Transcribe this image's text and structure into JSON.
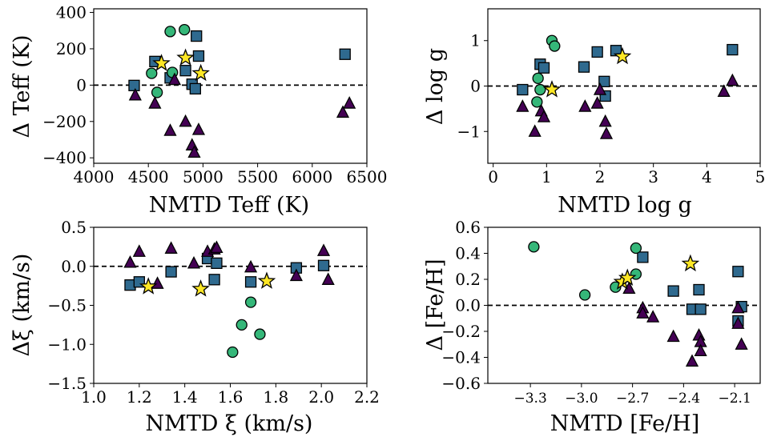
{
  "colors": {
    "square": "#2f6a8f",
    "circle": "#35b779",
    "triangle": "#440154",
    "star": "#fde725"
  },
  "chart_data": [
    {
      "id": "teff",
      "type": "scatter",
      "xlabel": "NMTD Teff (K)",
      "ylabel": "Δ Teff (K)",
      "xlim": [
        4000,
        6500
      ],
      "ylim": [
        -430,
        420
      ],
      "xticks": [
        4000,
        4500,
        5000,
        5500,
        6000,
        6500
      ],
      "yticks": [
        -400,
        -200,
        0,
        200,
        400
      ],
      "xtick_labels": [
        "4000",
        "4500",
        "5000",
        "5500",
        "6000",
        "6500"
      ],
      "ytick_labels": [
        "−400",
        "−200",
        "0",
        "200",
        "400"
      ],
      "zero_line": true,
      "series": [
        {
          "marker": "square",
          "points": [
            [
              4370,
              -2
            ],
            [
              4560,
              130
            ],
            [
              4700,
              40
            ],
            [
              4840,
              80
            ],
            [
              4900,
              5
            ],
            [
              4930,
              -20
            ],
            [
              4940,
              270
            ],
            [
              4960,
              160
            ],
            [
              6300,
              170
            ]
          ]
        },
        {
          "marker": "circle",
          "points": [
            [
              4530,
              65
            ],
            [
              4580,
              -40
            ],
            [
              4700,
              295
            ],
            [
              4830,
              305
            ],
            [
              4720,
              70
            ]
          ]
        },
        {
          "marker": "triangle",
          "points": [
            [
              4380,
              -55
            ],
            [
              4560,
              -100
            ],
            [
              4700,
              -250
            ],
            [
              4740,
              30
            ],
            [
              4840,
              -200
            ],
            [
              4900,
              -330
            ],
            [
              4920,
              -370
            ],
            [
              4960,
              -245
            ],
            [
              6280,
              -150
            ],
            [
              6340,
              -100
            ]
          ]
        },
        {
          "marker": "star",
          "points": [
            [
              4620,
              120
            ],
            [
              4840,
              150
            ],
            [
              4980,
              65
            ]
          ]
        }
      ]
    },
    {
      "id": "logg",
      "type": "scatter",
      "xlabel": "NMTD log g",
      "ylabel": "Δ log g",
      "xlim": [
        -0.1,
        5
      ],
      "ylim": [
        -1.7,
        1.7
      ],
      "xticks": [
        0,
        1,
        2,
        3,
        4,
        5
      ],
      "yticks": [
        -1,
        0,
        1
      ],
      "xtick_labels": [
        "0",
        "1",
        "2",
        "3",
        "4",
        "5"
      ],
      "ytick_labels": [
        "−1",
        "0",
        "1"
      ],
      "zero_line": true,
      "series": [
        {
          "marker": "square",
          "points": [
            [
              0.55,
              -0.08
            ],
            [
              0.88,
              0.48
            ],
            [
              0.95,
              0.4
            ],
            [
              1.7,
              0.42
            ],
            [
              1.95,
              0.75
            ],
            [
              2.08,
              0.1
            ],
            [
              2.1,
              -0.22
            ],
            [
              2.3,
              0.78
            ],
            [
              4.48,
              0.8
            ]
          ]
        },
        {
          "marker": "circle",
          "points": [
            [
              0.82,
              -0.35
            ],
            [
              0.84,
              0.17
            ],
            [
              0.88,
              -0.08
            ],
            [
              1.1,
              1.0
            ],
            [
              1.15,
              0.88
            ]
          ]
        },
        {
          "marker": "triangle",
          "points": [
            [
              0.55,
              -0.45
            ],
            [
              0.78,
              -1.0
            ],
            [
              0.9,
              -0.55
            ],
            [
              0.95,
              -0.68
            ],
            [
              1.72,
              -0.45
            ],
            [
              1.95,
              -0.38
            ],
            [
              2.0,
              -0.08
            ],
            [
              2.1,
              -0.78
            ],
            [
              2.12,
              -1.05
            ],
            [
              4.32,
              -0.12
            ],
            [
              4.48,
              0.12
            ]
          ]
        },
        {
          "marker": "star",
          "points": [
            [
              1.1,
              -0.08
            ],
            [
              2.42,
              0.65
            ]
          ]
        }
      ]
    },
    {
      "id": "xi",
      "type": "scatter",
      "xlabel": "NMTD ξ (km/s)",
      "ylabel": "Δξ (km/s)",
      "xlim": [
        1.0,
        2.2
      ],
      "ylim": [
        -1.5,
        0.5
      ],
      "xticks": [
        1.0,
        1.2,
        1.4,
        1.6,
        1.8,
        2.0,
        2.2
      ],
      "yticks": [
        -1.5,
        -1.0,
        -0.5,
        0.0,
        0.5
      ],
      "xtick_labels": [
        "1.0",
        "1.2",
        "1.4",
        "1.6",
        "1.8",
        "2.0",
        "2.2"
      ],
      "ytick_labels": [
        "−1.5",
        "−1.0",
        "−0.5",
        "0.0",
        "0.5"
      ],
      "zero_line": true,
      "series": [
        {
          "marker": "square",
          "points": [
            [
              1.16,
              -0.24
            ],
            [
              1.2,
              -0.2
            ],
            [
              1.34,
              -0.07
            ],
            [
              1.5,
              0.1
            ],
            [
              1.53,
              -0.17
            ],
            [
              1.54,
              0.04
            ],
            [
              1.69,
              -0.2
            ],
            [
              1.89,
              -0.02
            ],
            [
              2.01,
              0.01
            ]
          ]
        },
        {
          "marker": "circle",
          "points": [
            [
              1.61,
              -1.1
            ],
            [
              1.65,
              -0.75
            ],
            [
              1.69,
              -0.46
            ],
            [
              1.73,
              -0.87
            ]
          ]
        },
        {
          "marker": "triangle",
          "points": [
            [
              1.16,
              0.05
            ],
            [
              1.2,
              0.19
            ],
            [
              1.28,
              -0.22
            ],
            [
              1.34,
              0.23
            ],
            [
              1.44,
              0.04
            ],
            [
              1.5,
              0.19
            ],
            [
              1.53,
              0.22
            ],
            [
              1.54,
              0.24
            ],
            [
              1.69,
              -0.01
            ],
            [
              1.89,
              -0.12
            ],
            [
              2.01,
              0.2
            ],
            [
              2.03,
              -0.17
            ]
          ]
        },
        {
          "marker": "star",
          "points": [
            [
              1.24,
              -0.26
            ],
            [
              1.47,
              -0.29
            ],
            [
              1.76,
              -0.19
            ]
          ]
        }
      ]
    },
    {
      "id": "feh",
      "type": "scatter",
      "xlabel": "NMTD [Fe/H]",
      "ylabel": "Δ [Fe/H]",
      "xlim": [
        -3.55,
        -1.95
      ],
      "ylim": [
        -0.6,
        0.6
      ],
      "xticks": [
        -3.3,
        -3.0,
        -2.7,
        -2.4,
        -2.1
      ],
      "yticks": [
        -0.6,
        -0.4,
        -0.2,
        0.0,
        0.2,
        0.4,
        0.6
      ],
      "xtick_labels": [
        "−3.3",
        "−3.0",
        "−2.7",
        "−2.4",
        "−2.1"
      ],
      "ytick_labels": [
        "−0.6",
        "−0.4",
        "−0.2",
        "0.0",
        "0.2",
        "0.4",
        "0.6"
      ],
      "zero_line": true,
      "series": [
        {
          "marker": "square",
          "points": [
            [
              -2.64,
              0.37
            ],
            [
              -2.46,
              0.11
            ],
            [
              -2.35,
              -0.03
            ],
            [
              -2.31,
              0.12
            ],
            [
              -2.3,
              -0.03
            ],
            [
              -2.08,
              0.26
            ],
            [
              -2.08,
              -0.12
            ],
            [
              -2.06,
              -0.01
            ]
          ]
        },
        {
          "marker": "circle",
          "points": [
            [
              -3.28,
              0.45
            ],
            [
              -2.98,
              0.08
            ],
            [
              -2.8,
              0.14
            ],
            [
              -2.68,
              0.44
            ],
            [
              -2.68,
              0.24
            ]
          ]
        },
        {
          "marker": "triangle",
          "points": [
            [
              -2.72,
              0.13
            ],
            [
              -2.64,
              -0.02
            ],
            [
              -2.64,
              -0.06
            ],
            [
              -2.58,
              -0.09
            ],
            [
              -2.46,
              -0.24
            ],
            [
              -2.35,
              -0.43
            ],
            [
              -2.31,
              -0.23
            ],
            [
              -2.3,
              -0.28
            ],
            [
              -2.3,
              -0.35
            ],
            [
              -2.08,
              -0.02
            ],
            [
              -2.08,
              -0.14
            ],
            [
              -2.06,
              -0.3
            ]
          ]
        },
        {
          "marker": "star",
          "points": [
            [
              -2.76,
              0.18
            ],
            [
              -2.73,
              0.21
            ],
            [
              -2.36,
              0.32
            ]
          ]
        }
      ]
    }
  ]
}
